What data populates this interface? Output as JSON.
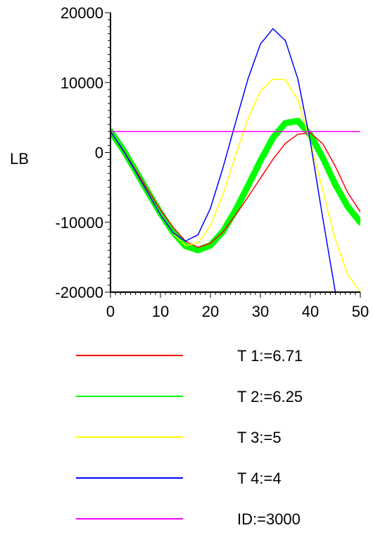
{
  "chart_data": {
    "type": "line",
    "ylabel": "LB",
    "xlim": [
      0,
      50
    ],
    "ylim": [
      -20000,
      20000
    ],
    "xticks": [
      "0",
      "10",
      "20",
      "30",
      "40",
      "50"
    ],
    "yticks": [
      "20000",
      "10000",
      "0",
      "-10000",
      "-20000"
    ],
    "grid": false,
    "legend_position": "bottom",
    "x": [
      0,
      2.5,
      5,
      7.5,
      10,
      12.5,
      15,
      17.5,
      20,
      22.5,
      25,
      27.5,
      30,
      32.5,
      35,
      37.5,
      40,
      42.5,
      45,
      47.5,
      50
    ],
    "series": [
      {
        "name": "T 1:=6.71",
        "color": "#ff0000",
        "width": 1.5,
        "values": [
          3000,
          400,
          -2500,
          -5400,
          -8200,
          -10700,
          -12700,
          -13600,
          -13000,
          -11400,
          -9000,
          -6400,
          -3700,
          -1000,
          1300,
          2600,
          2800,
          1200,
          -2000,
          -5800,
          -8500
        ]
      },
      {
        "name": "T 2:=6.25",
        "color": "#00ff00",
        "width": 9,
        "values": [
          3000,
          400,
          -2600,
          -5700,
          -8700,
          -11400,
          -13400,
          -14000,
          -13300,
          -11300,
          -8300,
          -4800,
          -1200,
          2100,
          4200,
          4500,
          2500,
          -800,
          -4600,
          -7800,
          -10000
        ]
      },
      {
        "name": "T 3:=5",
        "color": "#ffff00",
        "width": 1.5,
        "values": [
          3000,
          300,
          -2700,
          -5800,
          -8800,
          -11600,
          -13300,
          -13000,
          -10500,
          -6000,
          -500,
          4800,
          8800,
          10500,
          10400,
          7500,
          1500,
          -5500,
          -12500,
          -17500,
          -20000
        ]
      },
      {
        "name": "T 4:=4",
        "color": "#0000ff",
        "width": 1.5,
        "values": [
          3000,
          300,
          -2700,
          -5800,
          -8900,
          -11500,
          -12700,
          -11800,
          -8000,
          -2200,
          4200,
          10500,
          15500,
          17700,
          16000,
          10500,
          1500,
          -9500,
          -20000,
          null,
          null
        ]
      },
      {
        "name": "ID:=3000",
        "color": "#ff00ff",
        "width": 1.5,
        "values": [
          3000,
          3000,
          3000,
          3000,
          3000,
          3000,
          3000,
          3000,
          3000,
          3000,
          3000,
          3000,
          3000,
          3000,
          3000,
          3000,
          3000,
          3000,
          3000,
          3000,
          3000
        ]
      }
    ]
  }
}
